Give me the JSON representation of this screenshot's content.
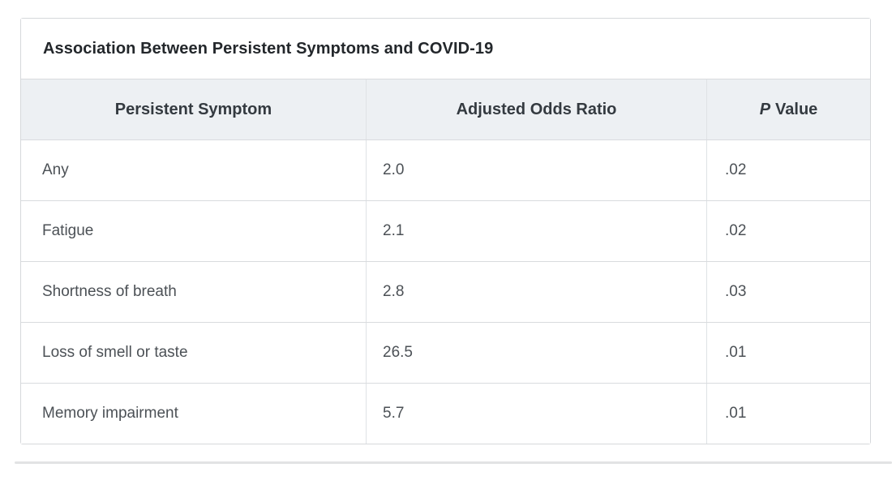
{
  "chart_data": {
    "type": "table",
    "title": "Association Between Persistent Symptoms and COVID-19",
    "columns": [
      "Persistent Symptom",
      "Adjusted Odds Ratio",
      "P Value"
    ],
    "p_value_header": {
      "italic_part": "P",
      "regular_part": "Value"
    },
    "rows": [
      [
        "Any",
        "2.0",
        ".02"
      ],
      [
        "Fatigue",
        "2.1",
        ".02"
      ],
      [
        "Shortness of breath",
        "2.8",
        ".03"
      ],
      [
        "Loss of smell or taste",
        "26.5",
        ".01"
      ],
      [
        "Memory impairment",
        "5.7",
        ".01"
      ]
    ]
  },
  "colors": {
    "header_background": "#edf0f3",
    "outer_border": "#d6d8db",
    "row_border": "#d9dbde",
    "column_divider": "#dfe2e5",
    "title_text": "#23272b",
    "header_text": "#343a40",
    "body_text": "#4c5156",
    "bottom_divider": "#e2e3e4"
  }
}
